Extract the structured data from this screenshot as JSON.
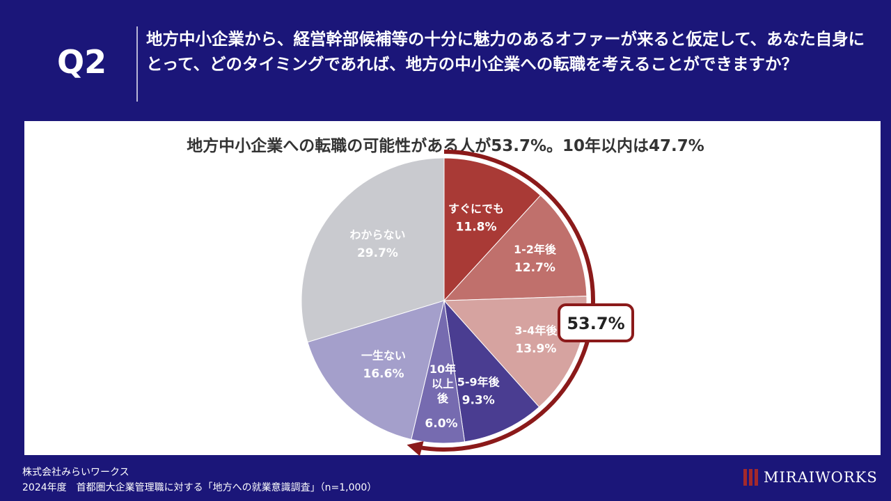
{
  "header": {
    "q_label": "Q2",
    "question": "地方中小企業から、経営幹部候補等の十分に魅力のあるオファーが来ると仮定して、あなた自身にとって、どのタイミングであれば、地方の中小企業への転職を考えることができますか？"
  },
  "chart_data": {
    "type": "pie",
    "title": "地方中小企業への転職の可能性がある人が53.7%。10年以内は47.7%",
    "slices": [
      {
        "label": "すぐにでも",
        "value": 11.8,
        "value_label": "11.8%",
        "color": "#a93a36",
        "text_color": "#ffffff"
      },
      {
        "label": "1-2年後",
        "value": 12.7,
        "value_label": "12.7%",
        "color": "#c0706c",
        "text_color": "#ffffff"
      },
      {
        "label": "3-4年後",
        "value": 13.9,
        "value_label": "13.9%",
        "color": "#d6a3a0",
        "text_color": "#ffffff"
      },
      {
        "label": "5-9年後",
        "value": 9.3,
        "value_label": "9.3%",
        "color": "#4a3d91",
        "text_color": "#ffffff"
      },
      {
        "label": "10年以上後",
        "value": 6.0,
        "value_label": "6.0%",
        "color": "#766bb0",
        "text_color": "#ffffff"
      },
      {
        "label": "一生ない",
        "value": 16.6,
        "value_label": "16.6%",
        "color": "#a49fcb",
        "text_color": "#ffffff"
      },
      {
        "label": "わからない",
        "value": 29.7,
        "value_label": "29.7%",
        "color": "#c9cacf",
        "text_color": "#ffffff"
      }
    ],
    "callout": "53.7%",
    "callout_color": "#8b1a1a"
  },
  "footer": {
    "company": "株式会社みらいワークス",
    "source": "2024年度　首都圏大企業管理職に対する「地方への就業意識調査」（n=1,000）",
    "brand": "MIRAIWORKS"
  }
}
